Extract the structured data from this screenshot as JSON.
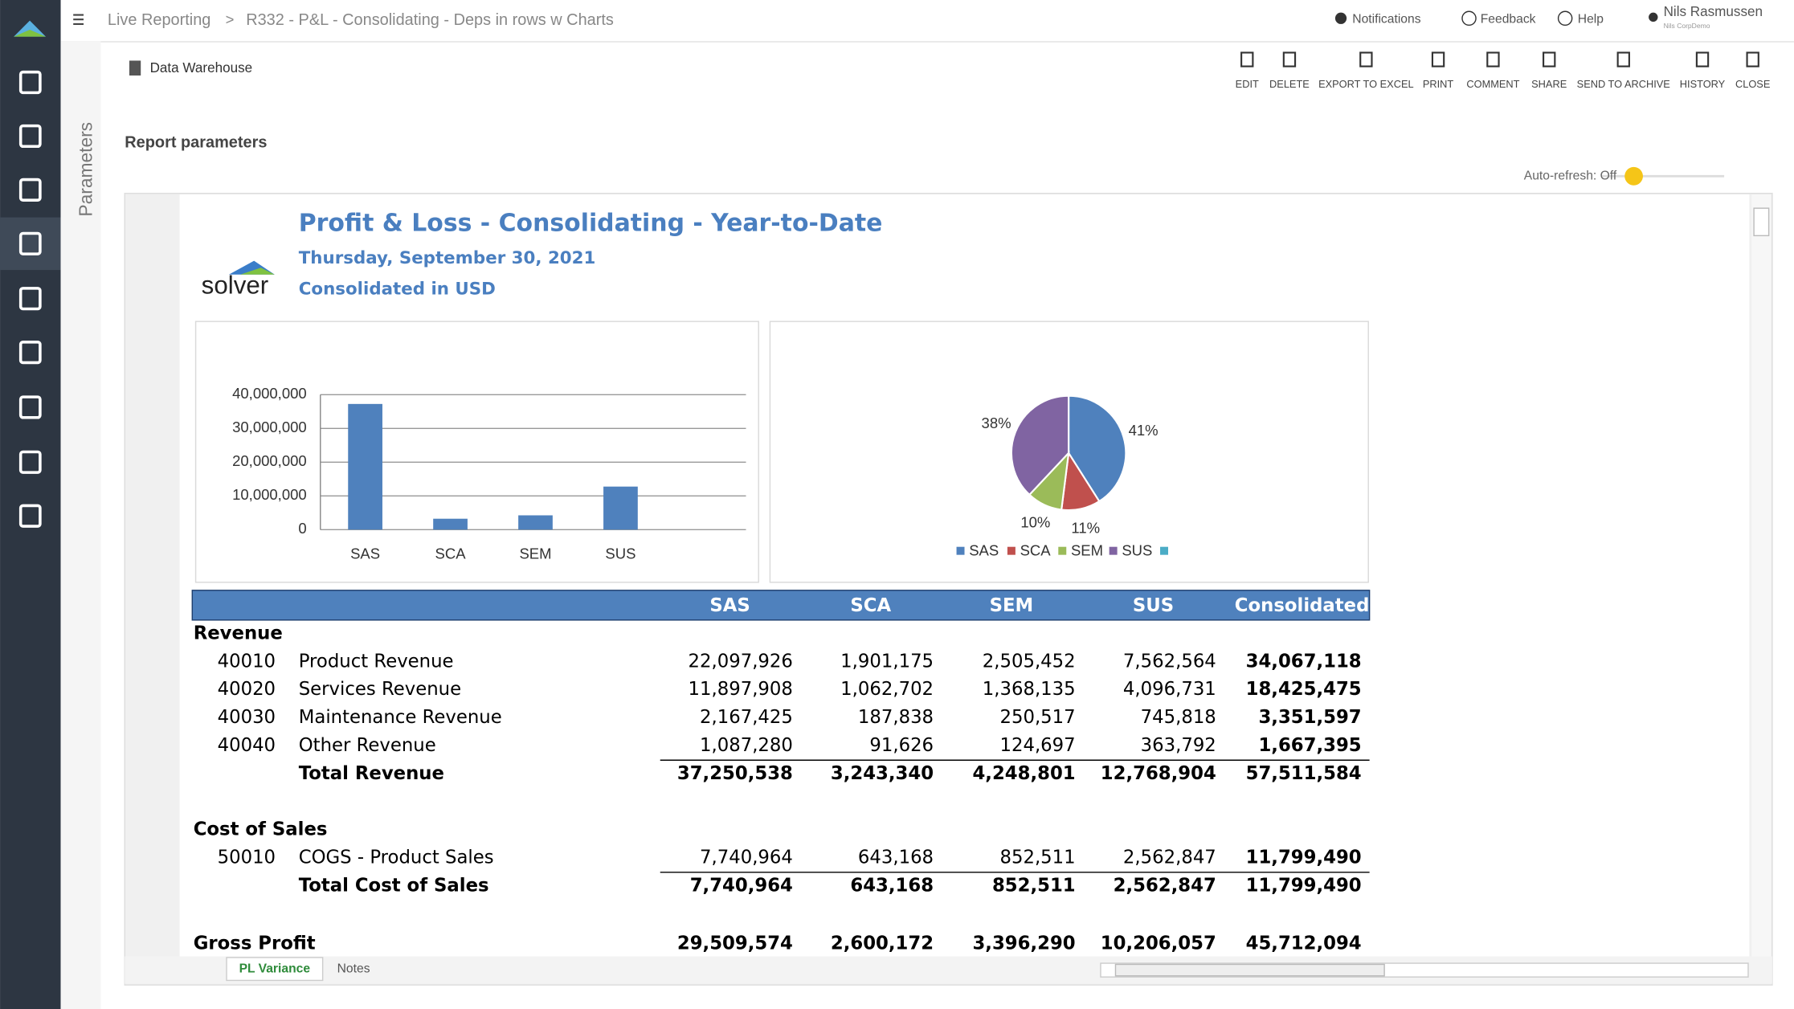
{
  "header": {
    "breadcrumb": [
      "Live Reporting",
      "R332 - P&L - Consolidating - Deps in rows w Charts"
    ],
    "breadcrumb_separator": ">",
    "notifications": "Notifications",
    "feedback": "Feedback",
    "help": "Help",
    "user": "Nils Rasmussen",
    "user_org": "Nils CorpDemo"
  },
  "toolbar": {
    "source": "Data Warehouse",
    "actions": [
      "EDIT",
      "DELETE",
      "EXPORT TO EXCEL",
      "PRINT",
      "COMMENT",
      "SHARE",
      "SEND TO ARCHIVE",
      "HISTORY",
      "CLOSE"
    ]
  },
  "parameters": {
    "panel": "Parameters",
    "report_parameters": "Report parameters",
    "auto_refresh": "Auto-refresh: Off"
  },
  "report": {
    "logo": "solver",
    "title": "Profit & Loss - Consolidating - Year-to-Date",
    "date": "Thursday, September 30, 2021",
    "currency": "Consolidated in USD"
  },
  "chart_data": [
    {
      "type": "bar",
      "categories": [
        "SAS",
        "SCA",
        "SEM",
        "SUS"
      ],
      "values": [
        37250538,
        3243340,
        4248801,
        12768904
      ],
      "color": "#4f81bd",
      "ylim": [
        0,
        40000000
      ],
      "yticks": [
        0,
        {
          "value": 10000000,
          "label": "10,000,000"
        },
        {
          "value": 20000000,
          "label": "20,000,000"
        },
        {
          "value": 30000000,
          "label": "30,000,000"
        },
        {
          "value": 40000000,
          "label": "40,000,000"
        }
      ],
      "grid": true
    },
    {
      "type": "pie",
      "categories": [
        "SAS",
        "SCA",
        "SEM",
        "SUS",
        null
      ],
      "values": [
        41,
        11,
        10,
        38,
        0
      ],
      "value_labels": [
        "41%",
        "11%",
        "10%",
        "38%",
        null
      ],
      "colors": [
        "#4f81bd",
        "#c0504d",
        "#9bbb59",
        "#8064a2",
        "#4bacc6"
      ],
      "legend": "bottom"
    }
  ],
  "table": {
    "columns": [
      "SAS",
      "SCA",
      "SEM",
      "SUS",
      "Consolidated"
    ],
    "sections": [
      {
        "title": "Revenue",
        "lines": [
          {
            "account": "40010",
            "label": "Product Revenue",
            "cells": [
              "22,097,926",
              "1,901,175",
              "2,505,452",
              "7,562,564",
              "34,067,118"
            ]
          },
          {
            "account": "40020",
            "label": "Services Revenue",
            "cells": [
              "11,897,908",
              "1,062,702",
              "1,368,135",
              "4,096,731",
              "18,425,475"
            ]
          },
          {
            "account": "40030",
            "label": "Maintenance Revenue",
            "cells": [
              "2,167,425",
              "187,838",
              "250,517",
              "745,818",
              "3,351,597"
            ]
          },
          {
            "account": "40040",
            "label": "Other Revenue",
            "cells": [
              "1,087,280",
              "91,626",
              "124,697",
              "363,792",
              "1,667,395"
            ]
          }
        ],
        "total": {
          "label": "Total Revenue",
          "cells": [
            "37,250,538",
            "3,243,340",
            "4,248,801",
            "12,768,904",
            "57,511,584"
          ]
        }
      },
      {
        "title": "Cost of Sales",
        "lines": [
          {
            "account": "50010",
            "label": "COGS - Product Sales",
            "cells": [
              "7,740,964",
              "643,168",
              "852,511",
              "2,562,847",
              "11,799,490"
            ]
          }
        ],
        "total": {
          "label": "Total Cost of Sales",
          "cells": [
            "7,740,964",
            "643,168",
            "852,511",
            "2,562,847",
            "11,799,490"
          ]
        }
      }
    ],
    "gross_profit": {
      "label": "Gross Profit",
      "cells": [
        "29,509,574",
        "2,600,172",
        "3,396,290",
        "10,206,057",
        "45,712,094"
      ]
    }
  },
  "tabs": [
    "PL Variance",
    "Notes"
  ]
}
